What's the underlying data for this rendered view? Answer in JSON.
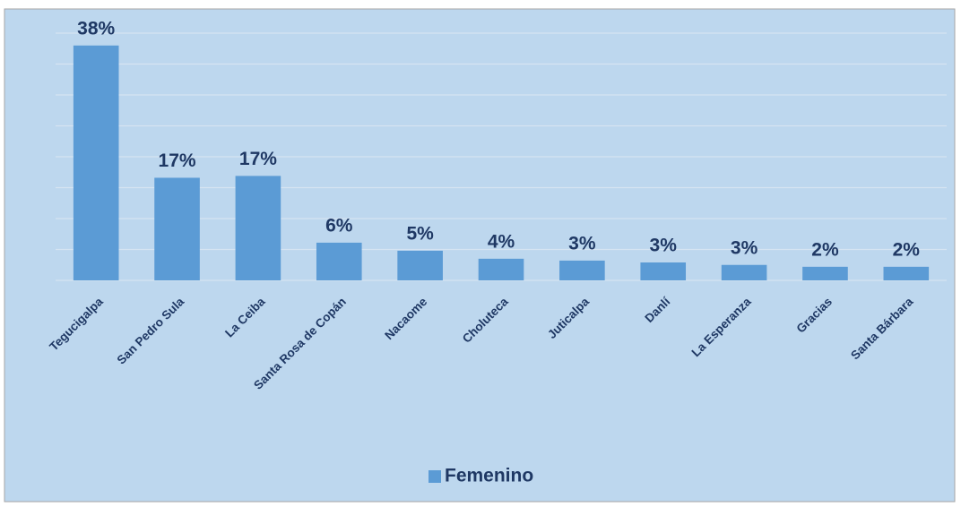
{
  "chart_data": {
    "type": "bar",
    "categories": [
      "Tegucigalpa",
      "San Pedro Sula",
      "La Ceiba",
      "Santa Rosa de Copán",
      "Nacaome",
      "Choluteca",
      "Juticalpa",
      "Danlí",
      "La Esperanza",
      "Gracias",
      "Santa Bárbara"
    ],
    "series": [
      {
        "name": "Femenino",
        "color": "#5b9bd5",
        "values": [
          38,
          16.6,
          16.9,
          6.1,
          4.8,
          3.5,
          3.2,
          2.9,
          2.5,
          2.2,
          2.2
        ],
        "value_labels": [
          "38%",
          "17%",
          "17%",
          "6%",
          "5%",
          "4%",
          "3%",
          "3%",
          "3%",
          "2%",
          "2%"
        ]
      }
    ],
    "ylim": [
      0,
      40
    ],
    "yticks": [
      0,
      5,
      10,
      15,
      20,
      25,
      30,
      35,
      40
    ],
    "grid": true,
    "legend": "bottom"
  }
}
